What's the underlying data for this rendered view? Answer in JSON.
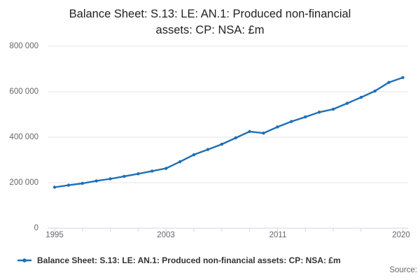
{
  "title": {
    "line1": "Balance Sheet: S.13: LE: AN.1: Produced non-financial",
    "line2": "assets: CP: NSA: £m"
  },
  "legend": {
    "label": "Balance Sheet: S.13: LE: AN.1: Produced non-financial assets: CP: NSA: £m"
  },
  "source": {
    "label": "Source:"
  },
  "chart_data": {
    "type": "line",
    "title": "Balance Sheet: S.13: LE: AN.1: Produced non-financial assets: CP: NSA: £m",
    "xlabel": "",
    "ylabel": "",
    "xlim": [
      1995,
      2020
    ],
    "ylim": [
      0,
      800000
    ],
    "grid": "horizontal",
    "legend_position": "bottom-left",
    "x": [
      1995,
      1996,
      1997,
      1998,
      1999,
      2000,
      2001,
      2002,
      2003,
      2004,
      2005,
      2006,
      2007,
      2008,
      2009,
      2010,
      2011,
      2012,
      2013,
      2014,
      2015,
      2016,
      2017,
      2018,
      2019,
      2020
    ],
    "series": [
      {
        "name": "Balance Sheet: S.13: LE: AN.1: Produced non-financial assets: CP: NSA: £m",
        "values": [
          180000,
          189000,
          197000,
          208000,
          217000,
          228000,
          239000,
          251000,
          263000,
          292000,
          323000,
          346000,
          369000,
          397000,
          425000,
          418000,
          445000,
          469000,
          489000,
          510000,
          523000,
          549000,
          575000,
          603000,
          641000,
          662000
        ]
      }
    ],
    "y_ticks": [
      {
        "label": "800 000",
        "value": 800000
      },
      {
        "label": "600 000",
        "value": 600000
      },
      {
        "label": "400 000",
        "value": 400000
      },
      {
        "label": "200 000",
        "value": 200000
      },
      {
        "label": "0",
        "value": 0
      }
    ],
    "x_ticks": [
      1995,
      1997,
      1999,
      2001,
      2003,
      2005,
      2007,
      2009,
      2011,
      2013,
      2015,
      2017,
      2020
    ],
    "x_tick_labels": [
      {
        "label": "1995",
        "year": 1995
      },
      {
        "label": "2003",
        "year": 2003
      },
      {
        "label": "2011",
        "year": 2011
      },
      {
        "label": "2020",
        "year": 2020
      }
    ],
    "colors": {
      "series": "#1d70b8",
      "gridline": "#e6e6e6",
      "axis": "#ccd6eb",
      "tick": "#ccd6eb",
      "axis_text": "#666666",
      "title_text": "#222222",
      "legend_text": "#333333"
    }
  }
}
